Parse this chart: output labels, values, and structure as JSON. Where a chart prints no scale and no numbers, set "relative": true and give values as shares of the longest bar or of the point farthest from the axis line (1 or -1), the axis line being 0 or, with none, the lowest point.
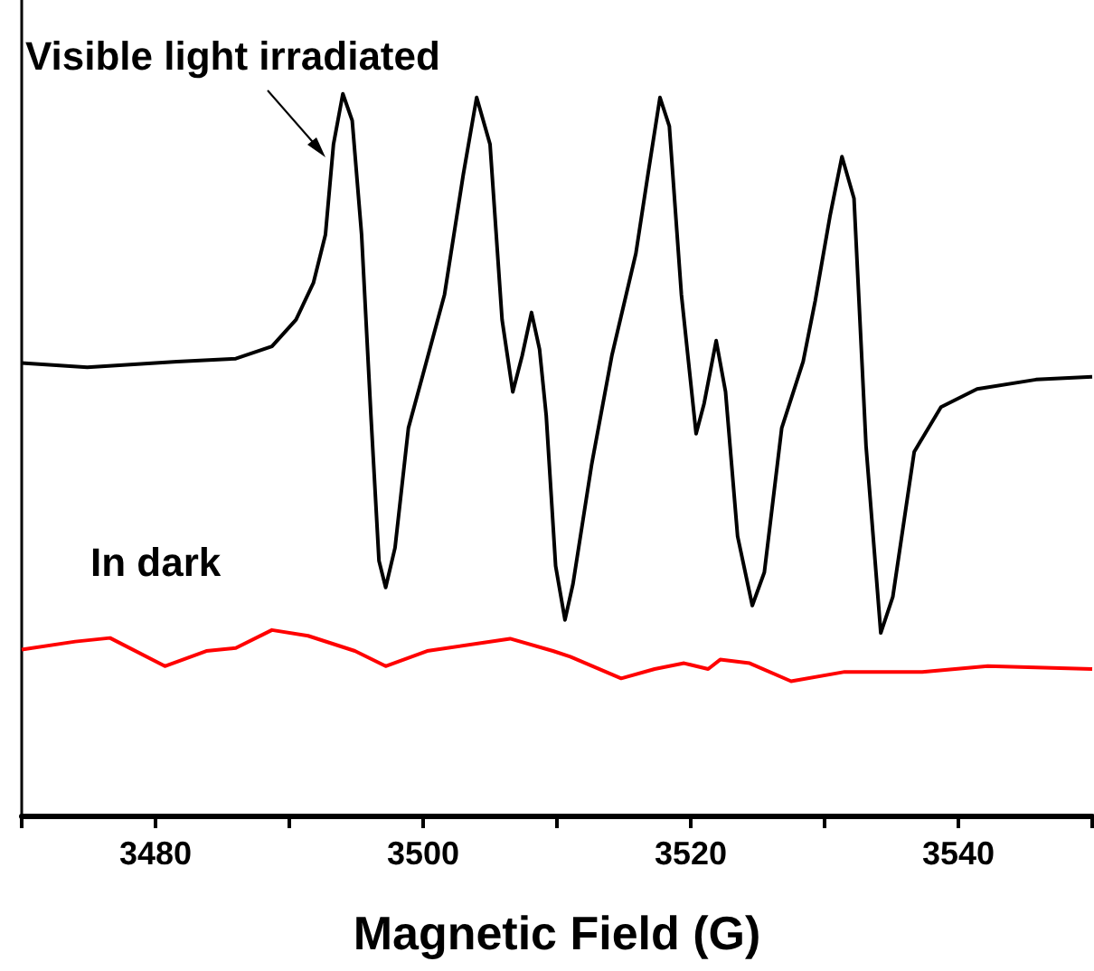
{
  "chart_data": {
    "type": "line",
    "relative": true,
    "xlabel": "Magnetic Field (G)",
    "xlim": [
      3470,
      3550
    ],
    "xticks": [
      {
        "value": 3470,
        "label": null
      },
      3480,
      {
        "value": 3490,
        "label": null
      },
      3500,
      {
        "value": 3510,
        "label": null
      },
      3520,
      {
        "value": 3530,
        "label": null
      },
      3540,
      {
        "value": 3550,
        "label": null
      }
    ],
    "grid": false,
    "marker": "none",
    "line_style": "solid",
    "series": [
      {
        "name": "Visible light irradiated",
        "color": "#000000",
        "x": [
          3470,
          3474.9,
          3481.6,
          3486.0,
          3488.7,
          3490.5,
          3491.8,
          3492.7,
          3493.3,
          3494.0,
          3494.7,
          3495.4,
          3496.1,
          3496.7,
          3497.2,
          3497.9,
          3498.9,
          3500.0,
          3501.6,
          3503.0,
          3504.0,
          3505.0,
          3505.9,
          3506.7,
          3507.4,
          3508.1,
          3508.7,
          3509.2,
          3509.9,
          3510.6,
          3511.2,
          3512.6,
          3514.1,
          3515.9,
          3516.8,
          3517.7,
          3518.4,
          3519.3,
          3520.4,
          3521.0,
          3521.9,
          3522.6,
          3523.5,
          3524.6,
          3525.5,
          3526.8,
          3528.4,
          3529.3,
          3530.4,
          3531.3,
          3532.2,
          3533.1,
          3534.2,
          3535.1,
          3536.7,
          3538.7,
          3541.4,
          3545.8,
          3550
        ],
        "values": [
          0.627,
          0.621,
          0.629,
          0.633,
          0.65,
          0.687,
          0.738,
          0.805,
          0.93,
          1,
          0.963,
          0.805,
          0.554,
          0.353,
          0.316,
          0.371,
          0.537,
          0.612,
          0.722,
          0.888,
          0.995,
          0.93,
          0.687,
          0.587,
          0.637,
          0.697,
          0.646,
          0.554,
          0.346,
          0.271,
          0.321,
          0.487,
          0.637,
          0.779,
          0.888,
          0.995,
          0.955,
          0.722,
          0.529,
          0.571,
          0.658,
          0.587,
          0.387,
          0.291,
          0.337,
          0.537,
          0.629,
          0.713,
          0.83,
          0.913,
          0.855,
          0.512,
          0.253,
          0.303,
          0.504,
          0.566,
          0.591,
          0.604,
          0.608
        ]
      },
      {
        "name": "In dark",
        "color": "#ff0000",
        "x": [
          3470,
          3474.0,
          3476.6,
          3480.7,
          3483.8,
          3486.0,
          3488.7,
          3491.4,
          3494.9,
          3497.2,
          3500.3,
          3506.5,
          3509.7,
          3511.0,
          3514.8,
          3517.3,
          3519.5,
          3521.3,
          3522.2,
          3524.4,
          3527.5,
          3531.5,
          3537.3,
          3542.2,
          3550
        ],
        "values": [
          0.23,
          0.241,
          0.246,
          0.207,
          0.228,
          0.232,
          0.257,
          0.249,
          0.228,
          0.207,
          0.228,
          0.245,
          0.228,
          0.22,
          0.19,
          0.203,
          0.211,
          0.203,
          0.216,
          0.211,
          0.186,
          0.199,
          0.199,
          0.207,
          0.203
        ]
      }
    ]
  }
}
